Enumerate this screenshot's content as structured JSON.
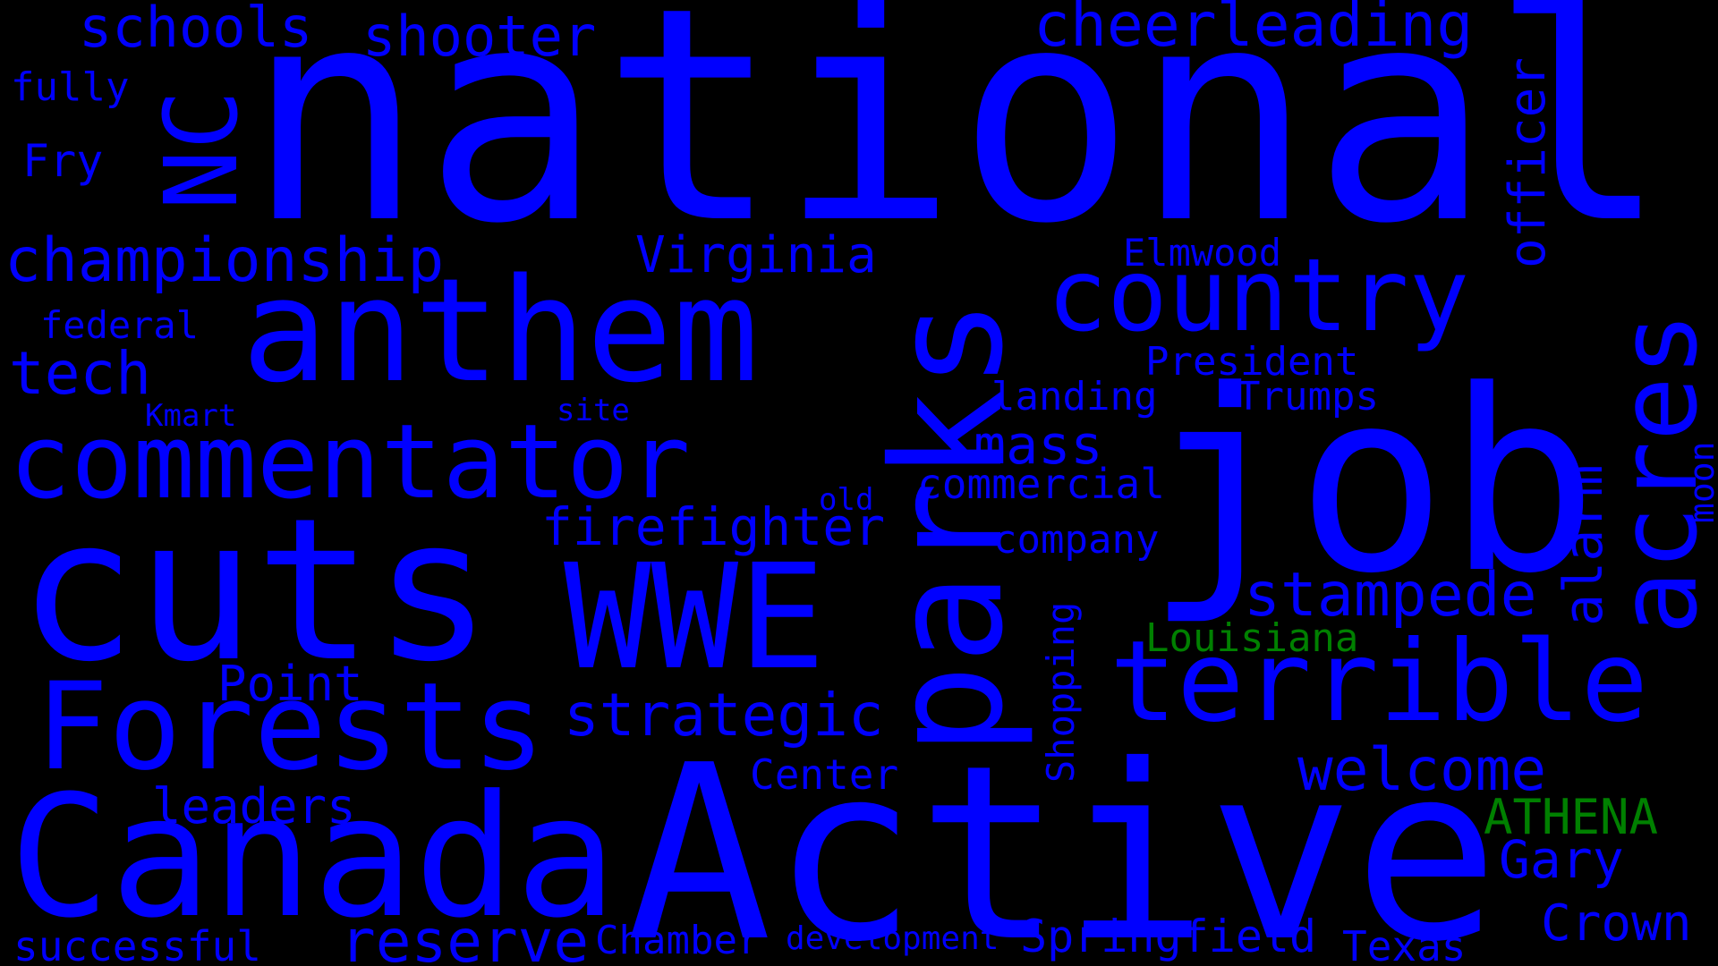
{
  "colors": {
    "background": "#000000",
    "blue": "#0000ff",
    "green": "#008000"
  },
  "words": [
    {
      "text": "national",
      "color": "#0000ff"
    },
    {
      "text": "Active",
      "color": "#0000ff"
    },
    {
      "text": "cuts",
      "color": "#0000ff"
    },
    {
      "text": "job",
      "color": "#0000ff"
    },
    {
      "text": "parks",
      "color": "#0000ff"
    },
    {
      "text": "anthem",
      "color": "#0000ff"
    },
    {
      "text": "Canada",
      "color": "#0000ff"
    },
    {
      "text": "Forests",
      "color": "#0000ff"
    },
    {
      "text": "commentator",
      "color": "#0000ff"
    },
    {
      "text": "WWE",
      "color": "#0000ff"
    },
    {
      "text": "terrible",
      "color": "#0000ff"
    },
    {
      "text": "country",
      "color": "#0000ff"
    },
    {
      "text": "acres",
      "color": "#0000ff"
    },
    {
      "text": "NC",
      "color": "#0000ff"
    },
    {
      "text": "cheerleading",
      "color": "#0000ff"
    },
    {
      "text": "championship",
      "color": "#0000ff"
    },
    {
      "text": "stampede",
      "color": "#0000ff"
    },
    {
      "text": "reserve",
      "color": "#0000ff"
    },
    {
      "text": "strategic",
      "color": "#0000ff"
    },
    {
      "text": "welcome",
      "color": "#0000ff"
    },
    {
      "text": "officer",
      "color": "#0000ff"
    },
    {
      "text": "schools",
      "color": "#0000ff"
    },
    {
      "text": "shooter",
      "color": "#0000ff"
    },
    {
      "text": "tech",
      "color": "#0000ff"
    },
    {
      "text": "firefighter",
      "color": "#0000ff"
    },
    {
      "text": "alarm",
      "color": "#0000ff"
    },
    {
      "text": "Springfield",
      "color": "#0000ff"
    },
    {
      "text": "Gary",
      "color": "#0000ff"
    },
    {
      "text": "Crown",
      "color": "#0000ff"
    },
    {
      "text": "mass",
      "color": "#0000ff"
    },
    {
      "text": "Virginia",
      "color": "#0000ff"
    },
    {
      "text": "leaders",
      "color": "#0000ff"
    },
    {
      "text": "Point",
      "color": "#0000ff"
    },
    {
      "text": "successful",
      "color": "#0000ff"
    },
    {
      "text": "Chamber",
      "color": "#0000ff"
    },
    {
      "text": "ATHENA",
      "color": "#008000"
    },
    {
      "text": "Center",
      "color": "#0000ff"
    },
    {
      "text": "commercial",
      "color": "#0000ff"
    },
    {
      "text": "company",
      "color": "#0000ff"
    },
    {
      "text": "Shopping",
      "color": "#0000ff"
    },
    {
      "text": "Louisiana",
      "color": "#008000"
    },
    {
      "text": "Texas",
      "color": "#0000ff"
    },
    {
      "text": "landing",
      "color": "#0000ff"
    },
    {
      "text": "Trumps",
      "color": "#0000ff"
    },
    {
      "text": "President",
      "color": "#0000ff"
    },
    {
      "text": "Elmwood",
      "color": "#0000ff"
    },
    {
      "text": "Fry",
      "color": "#0000ff"
    },
    {
      "text": "fully",
      "color": "#0000ff"
    },
    {
      "text": "federal",
      "color": "#0000ff"
    },
    {
      "text": "moon",
      "color": "#0000ff"
    },
    {
      "text": "development",
      "color": "#0000ff"
    },
    {
      "text": "Kmart",
      "color": "#0000ff"
    },
    {
      "text": "site",
      "color": "#0000ff"
    },
    {
      "text": "old",
      "color": "#0000ff"
    }
  ]
}
